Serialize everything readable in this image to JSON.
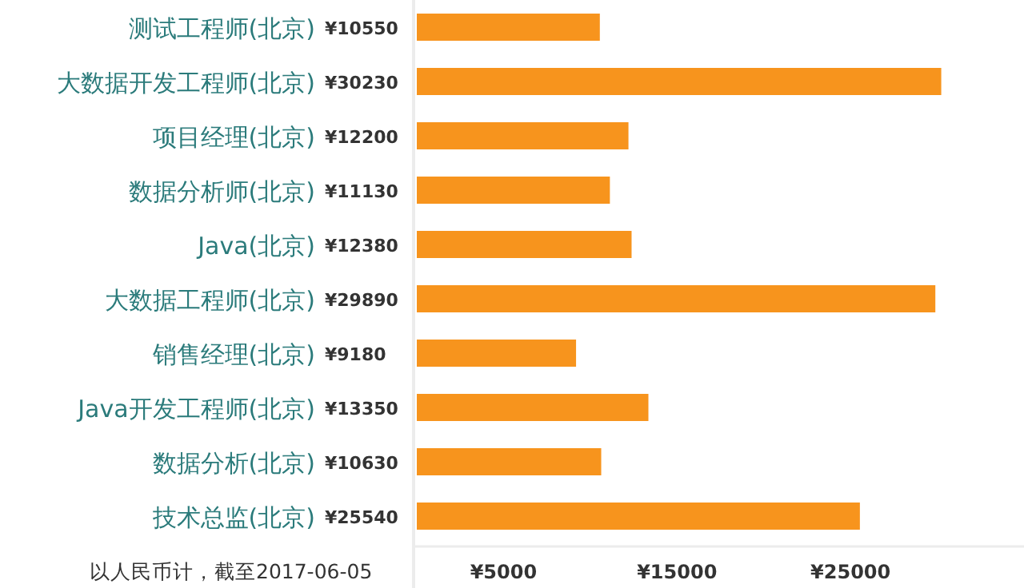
{
  "chart_data": {
    "type": "bar",
    "orientation": "horizontal",
    "categories": [
      "测试工程师(北京)",
      "大数据开发工程师(北京)",
      "项目经理(北京)",
      "数据分析师(北京)",
      "Java(北京)",
      "大数据工程师(北京)",
      "销售经理(北京)",
      "Java开发工程师(北京)",
      "数据分析(北京)",
      "技术总监(北京)"
    ],
    "values": [
      10550,
      30230,
      12200,
      11130,
      12380,
      29890,
      9180,
      13350,
      10630,
      25540
    ],
    "value_labels": [
      "¥10550",
      "¥30230",
      "¥12200",
      "¥11130",
      "¥12380",
      "¥29890",
      "¥9180",
      "¥13350",
      "¥10630",
      "¥25540"
    ],
    "color": "#f7941d",
    "xlim": [
      0,
      35000
    ],
    "xticks": [
      {
        "value": 5000,
        "label": "¥5000"
      },
      {
        "value": 15000,
        "label": "¥15000"
      },
      {
        "value": 25000,
        "label": "¥25000"
      }
    ],
    "annotations": [
      "以人民币计，截至2017-06-05"
    ]
  }
}
